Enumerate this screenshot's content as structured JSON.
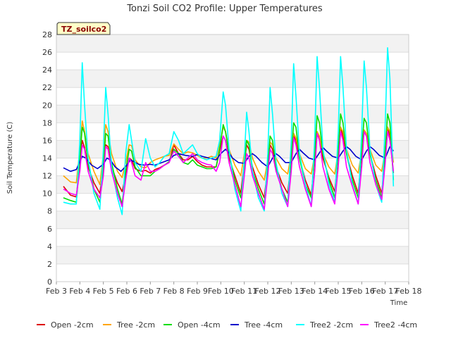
{
  "chart_data": {
    "type": "line",
    "title": "Tonzi Soil CO2 Profile: Upper Temperatures",
    "xlabel": "Time",
    "ylabel": "Soil Temperature (C)",
    "badge": "TZ_soilco2",
    "xlim": [
      3,
      18
    ],
    "ylim": [
      0,
      28
    ],
    "x_tick_values": [
      3,
      4,
      5,
      6,
      7,
      8,
      9,
      10,
      11,
      12,
      13,
      14,
      15,
      16,
      17,
      18
    ],
    "x_tick_labels": [
      "Feb 3",
      "Feb 4",
      "Feb 5",
      "Feb 6",
      "Feb 7",
      "Feb 8",
      "Feb 9",
      "Feb 10",
      "Feb 11",
      "Feb 12",
      "Feb 13",
      "Feb 14",
      "Feb 15",
      "Feb 16",
      "Feb 17",
      "Feb 18"
    ],
    "y_ticks": [
      0,
      2,
      4,
      6,
      8,
      10,
      12,
      14,
      16,
      18,
      20,
      22,
      24,
      26,
      28
    ],
    "grid": true,
    "legend_position": "bottom",
    "series": [
      {
        "name": "Open -2cm",
        "color": "#dd0000",
        "x": [
          3.3,
          3.6,
          3.85,
          4.0,
          4.1,
          4.2,
          4.35,
          4.6,
          4.85,
          5.0,
          5.1,
          5.2,
          5.35,
          5.6,
          5.8,
          5.95,
          6.1,
          6.2,
          6.35,
          6.6,
          6.8,
          7.0,
          7.2,
          7.4,
          7.6,
          7.8,
          8.0,
          8.2,
          8.4,
          8.6,
          8.8,
          9.0,
          9.2,
          9.4,
          9.6,
          9.8,
          9.95,
          10.1,
          10.2,
          10.35,
          10.6,
          10.85,
          11.0,
          11.1,
          11.2,
          11.35,
          11.6,
          11.85,
          12.0,
          12.1,
          12.2,
          12.35,
          12.6,
          12.85,
          13.0,
          13.1,
          13.2,
          13.35,
          13.6,
          13.85,
          14.0,
          14.1,
          14.2,
          14.35,
          14.6,
          14.85,
          15.0,
          15.1,
          15.2,
          15.35,
          15.6,
          15.85,
          16.0,
          16.1,
          16.2,
          16.35,
          16.6,
          16.85,
          17.0,
          17.1,
          17.2,
          17.35
        ],
        "values": [
          10.8,
          9.8,
          9.6,
          13.5,
          16.0,
          15.2,
          13.0,
          11.2,
          10.0,
          13.0,
          15.5,
          15.3,
          13.0,
          11.2,
          10.2,
          12.0,
          14.0,
          13.8,
          12.8,
          12.5,
          12.6,
          12.3,
          12.7,
          12.9,
          13.2,
          13.5,
          15.5,
          14.5,
          13.8,
          13.8,
          14.2,
          13.6,
          13.2,
          13.0,
          13.0,
          13.0,
          14.8,
          16.5,
          16.0,
          14.0,
          12.0,
          10.0,
          13.5,
          15.5,
          15.0,
          13.0,
          11.0,
          9.5,
          13.0,
          15.5,
          15.0,
          13.0,
          11.2,
          10.0,
          13.8,
          16.5,
          16.0,
          14.0,
          11.5,
          9.8,
          14.0,
          17.0,
          16.2,
          14.0,
          11.8,
          10.2,
          14.5,
          17.5,
          16.5,
          14.5,
          12.0,
          10.0,
          14.5,
          17.0,
          16.5,
          14.5,
          12.0,
          10.0,
          14.5,
          17.5,
          16.5,
          12.3
        ]
      },
      {
        "name": "Tree -2cm",
        "color": "#ffa500",
        "x": [
          3.3,
          3.6,
          3.85,
          4.0,
          4.1,
          4.2,
          4.35,
          4.6,
          4.85,
          5.0,
          5.1,
          5.2,
          5.35,
          5.6,
          5.8,
          5.95,
          6.1,
          6.2,
          6.35,
          6.6,
          6.8,
          7.0,
          7.2,
          7.4,
          7.6,
          7.8,
          8.0,
          8.2,
          8.4,
          8.6,
          8.8,
          9.0,
          9.2,
          9.4,
          9.6,
          9.8,
          9.95,
          10.1,
          10.2,
          10.35,
          10.6,
          10.85,
          11.0,
          11.1,
          11.2,
          11.35,
          11.6,
          11.85,
          12.0,
          12.1,
          12.2,
          12.35,
          12.6,
          12.85,
          13.0,
          13.1,
          13.2,
          13.35,
          13.6,
          13.85,
          14.0,
          14.1,
          14.2,
          14.35,
          14.6,
          14.85,
          15.0,
          15.1,
          15.2,
          15.35,
          15.6,
          15.85,
          16.0,
          16.1,
          16.2,
          16.35,
          16.6,
          16.85,
          17.0,
          17.1,
          17.2,
          17.35
        ],
        "values": [
          12.0,
          11.3,
          11.2,
          15.0,
          18.2,
          17.0,
          14.5,
          12.5,
          11.0,
          14.5,
          17.8,
          17.0,
          14.5,
          12.5,
          11.8,
          13.5,
          15.5,
          15.4,
          13.8,
          13.0,
          12.9,
          13.5,
          13.8,
          14.0,
          14.2,
          14.3,
          15.6,
          15.0,
          14.5,
          14.7,
          14.6,
          14.3,
          14.0,
          14.0,
          14.2,
          14.0,
          15.5,
          17.5,
          17.0,
          15.0,
          13.2,
          12.0,
          14.5,
          16.0,
          15.8,
          14.0,
          12.5,
          11.5,
          13.8,
          15.8,
          15.5,
          14.0,
          12.8,
          12.2,
          14.5,
          16.8,
          16.3,
          14.5,
          12.8,
          12.2,
          14.5,
          17.0,
          16.5,
          14.5,
          13.0,
          12.2,
          14.8,
          17.5,
          17.0,
          15.0,
          13.2,
          12.3,
          14.8,
          17.2,
          16.8,
          15.0,
          13.2,
          12.5,
          15.0,
          17.5,
          17.0,
          13.5
        ]
      },
      {
        "name": "Open -4cm",
        "color": "#00dd00",
        "x": [
          3.3,
          3.6,
          3.85,
          4.0,
          4.1,
          4.2,
          4.35,
          4.6,
          4.85,
          5.0,
          5.1,
          5.2,
          5.35,
          5.6,
          5.8,
          5.95,
          6.1,
          6.2,
          6.35,
          6.6,
          6.8,
          7.0,
          7.2,
          7.4,
          7.6,
          7.8,
          8.0,
          8.2,
          8.4,
          8.6,
          8.8,
          9.0,
          9.2,
          9.4,
          9.6,
          9.8,
          9.95,
          10.1,
          10.2,
          10.35,
          10.6,
          10.85,
          11.0,
          11.1,
          11.2,
          11.35,
          11.6,
          11.85,
          12.0,
          12.1,
          12.2,
          12.35,
          12.6,
          12.85,
          13.0,
          13.1,
          13.2,
          13.35,
          13.6,
          13.85,
          14.0,
          14.1,
          14.2,
          14.35,
          14.6,
          14.85,
          15.0,
          15.1,
          15.2,
          15.35,
          15.6,
          15.85,
          16.0,
          16.1,
          16.2,
          16.35,
          16.6,
          16.85,
          17.0,
          17.1,
          17.2,
          17.35
        ],
        "values": [
          9.5,
          9.2,
          9.0,
          14.0,
          17.5,
          16.8,
          13.5,
          10.5,
          9.0,
          13.0,
          16.8,
          16.5,
          13.5,
          10.5,
          8.8,
          12.5,
          15.0,
          14.8,
          13.0,
          12.0,
          12.0,
          12.0,
          12.5,
          12.8,
          13.2,
          13.6,
          15.0,
          14.5,
          13.5,
          13.3,
          13.8,
          13.2,
          13.0,
          12.8,
          12.8,
          13.0,
          15.0,
          17.8,
          17.0,
          14.5,
          11.5,
          9.5,
          13.0,
          16.0,
          15.5,
          12.5,
          10.5,
          8.8,
          13.0,
          16.5,
          16.0,
          13.0,
          10.5,
          9.0,
          14.0,
          18.0,
          17.5,
          14.0,
          11.0,
          9.5,
          14.5,
          18.8,
          18.0,
          14.5,
          11.5,
          9.5,
          15.0,
          19.0,
          18.0,
          14.5,
          11.5,
          9.5,
          15.0,
          18.5,
          18.0,
          14.5,
          11.5,
          9.5,
          15.0,
          19.0,
          18.0,
          11.5
        ]
      },
      {
        "name": "Tree -4cm",
        "color": "#0000cc",
        "x": [
          3.3,
          3.6,
          3.85,
          4.0,
          4.1,
          4.25,
          4.5,
          4.75,
          5.0,
          5.15,
          5.3,
          5.5,
          5.75,
          6.0,
          6.15,
          6.3,
          6.5,
          6.75,
          7.0,
          7.2,
          7.5,
          7.8,
          8.0,
          8.2,
          8.5,
          8.8,
          9.0,
          9.2,
          9.5,
          9.8,
          10.0,
          10.2,
          10.35,
          10.5,
          10.75,
          11.0,
          11.2,
          11.35,
          11.5,
          11.75,
          12.0,
          12.2,
          12.35,
          12.5,
          12.75,
          13.0,
          13.2,
          13.35,
          13.5,
          13.75,
          14.0,
          14.2,
          14.35,
          14.5,
          14.75,
          15.0,
          15.2,
          15.35,
          15.5,
          15.75,
          16.0,
          16.2,
          16.35,
          16.5,
          16.75,
          17.0,
          17.2,
          17.35
        ],
        "values": [
          12.9,
          12.5,
          12.7,
          13.6,
          14.2,
          14.0,
          13.2,
          12.8,
          13.3,
          14.0,
          13.8,
          13.0,
          12.5,
          13.2,
          13.8,
          13.6,
          13.3,
          13.2,
          13.3,
          13.2,
          13.5,
          13.8,
          14.3,
          14.5,
          14.3,
          14.2,
          14.4,
          14.2,
          14.0,
          13.8,
          14.5,
          15.0,
          14.6,
          14.0,
          13.5,
          13.4,
          14.2,
          14.5,
          14.2,
          13.5,
          13.0,
          14.0,
          14.5,
          14.2,
          13.5,
          13.5,
          14.5,
          15.0,
          14.6,
          14.0,
          13.8,
          14.6,
          15.2,
          14.8,
          14.2,
          14.0,
          14.8,
          15.3,
          15.0,
          14.2,
          13.8,
          14.8,
          15.3,
          15.0,
          14.3,
          14.0,
          15.3,
          14.8
        ]
      },
      {
        "name": "Tree2 -2cm",
        "color": "#00ffff",
        "x": [
          3.3,
          3.6,
          3.85,
          4.0,
          4.1,
          4.2,
          4.35,
          4.6,
          4.85,
          5.0,
          5.1,
          5.2,
          5.35,
          5.6,
          5.8,
          5.95,
          6.1,
          6.2,
          6.35,
          6.6,
          6.8,
          7.0,
          7.2,
          7.4,
          7.6,
          7.8,
          8.0,
          8.2,
          8.4,
          8.6,
          8.8,
          9.0,
          9.2,
          9.4,
          9.6,
          9.8,
          9.95,
          10.1,
          10.2,
          10.35,
          10.6,
          10.85,
          11.0,
          11.1,
          11.2,
          11.35,
          11.6,
          11.85,
          12.0,
          12.1,
          12.2,
          12.35,
          12.6,
          12.85,
          13.0,
          13.1,
          13.2,
          13.35,
          13.6,
          13.85,
          14.0,
          14.1,
          14.2,
          14.35,
          14.6,
          14.85,
          15.0,
          15.1,
          15.2,
          15.35,
          15.6,
          15.85,
          16.0,
          16.1,
          16.2,
          16.35,
          16.6,
          16.85,
          17.0,
          17.1,
          17.2,
          17.35
        ],
        "values": [
          9.0,
          8.8,
          8.8,
          16.0,
          24.8,
          20.0,
          14.0,
          10.0,
          8.2,
          15.0,
          22.0,
          19.0,
          13.0,
          9.5,
          7.6,
          14.5,
          17.8,
          16.0,
          13.5,
          12.5,
          16.2,
          14.0,
          13.0,
          13.5,
          14.2,
          14.5,
          17.0,
          16.0,
          14.5,
          15.0,
          15.5,
          14.5,
          14.0,
          13.8,
          14.0,
          14.2,
          16.0,
          21.5,
          20.0,
          15.0,
          10.5,
          8.0,
          14.0,
          19.2,
          17.0,
          12.5,
          9.5,
          8.0,
          14.5,
          22.0,
          19.0,
          13.5,
          10.0,
          8.5,
          16.0,
          24.7,
          21.0,
          14.5,
          11.0,
          8.5,
          16.5,
          25.5,
          22.0,
          15.0,
          11.0,
          9.0,
          17.0,
          25.5,
          22.0,
          15.0,
          11.0,
          8.8,
          17.0,
          25.0,
          22.0,
          15.0,
          11.0,
          9.0,
          18.0,
          26.5,
          23.0,
          10.8
        ]
      },
      {
        "name": "Tree2 -4cm",
        "color": "#ff00ff",
        "x": [
          3.3,
          3.6,
          3.85,
          4.0,
          4.1,
          4.2,
          4.35,
          4.6,
          4.85,
          5.0,
          5.1,
          5.2,
          5.35,
          5.6,
          5.8,
          5.95,
          6.1,
          6.2,
          6.35,
          6.6,
          6.8,
          7.0,
          7.2,
          7.4,
          7.6,
          7.8,
          8.0,
          8.2,
          8.4,
          8.6,
          8.8,
          9.0,
          9.2,
          9.4,
          9.6,
          9.8,
          9.95,
          10.1,
          10.2,
          10.35,
          10.6,
          10.85,
          11.0,
          11.1,
          11.2,
          11.35,
          11.6,
          11.85,
          12.0,
          12.1,
          12.2,
          12.35,
          12.6,
          12.85,
          13.0,
          13.1,
          13.2,
          13.35,
          13.6,
          13.85,
          14.0,
          14.1,
          14.2,
          14.35,
          14.6,
          14.85,
          15.0,
          15.1,
          15.2,
          15.35,
          15.6,
          15.85,
          16.0,
          16.1,
          16.2,
          16.35,
          16.6,
          16.85,
          17.0,
          17.1,
          17.2,
          17.35
        ],
        "values": [
          10.5,
          10.0,
          9.8,
          12.5,
          15.5,
          15.0,
          12.5,
          10.5,
          9.5,
          12.0,
          15.3,
          15.0,
          12.5,
          10.0,
          8.5,
          11.5,
          14.0,
          13.5,
          12.0,
          11.5,
          13.5,
          12.5,
          12.5,
          12.8,
          13.2,
          13.5,
          14.8,
          14.2,
          13.5,
          14.0,
          14.5,
          13.8,
          13.5,
          13.3,
          13.2,
          12.5,
          13.5,
          16.5,
          16.0,
          13.5,
          11.0,
          8.5,
          12.0,
          14.5,
          14.0,
          12.0,
          10.0,
          8.2,
          12.0,
          15.0,
          14.5,
          12.5,
          10.5,
          8.5,
          12.5,
          16.3,
          15.5,
          13.0,
          10.5,
          8.5,
          12.5,
          16.8,
          16.0,
          13.0,
          10.5,
          8.8,
          13.0,
          17.0,
          16.0,
          13.0,
          10.8,
          8.8,
          13.0,
          17.0,
          16.5,
          13.5,
          11.0,
          9.3,
          13.5,
          17.0,
          16.0,
          12.5
        ]
      }
    ]
  }
}
